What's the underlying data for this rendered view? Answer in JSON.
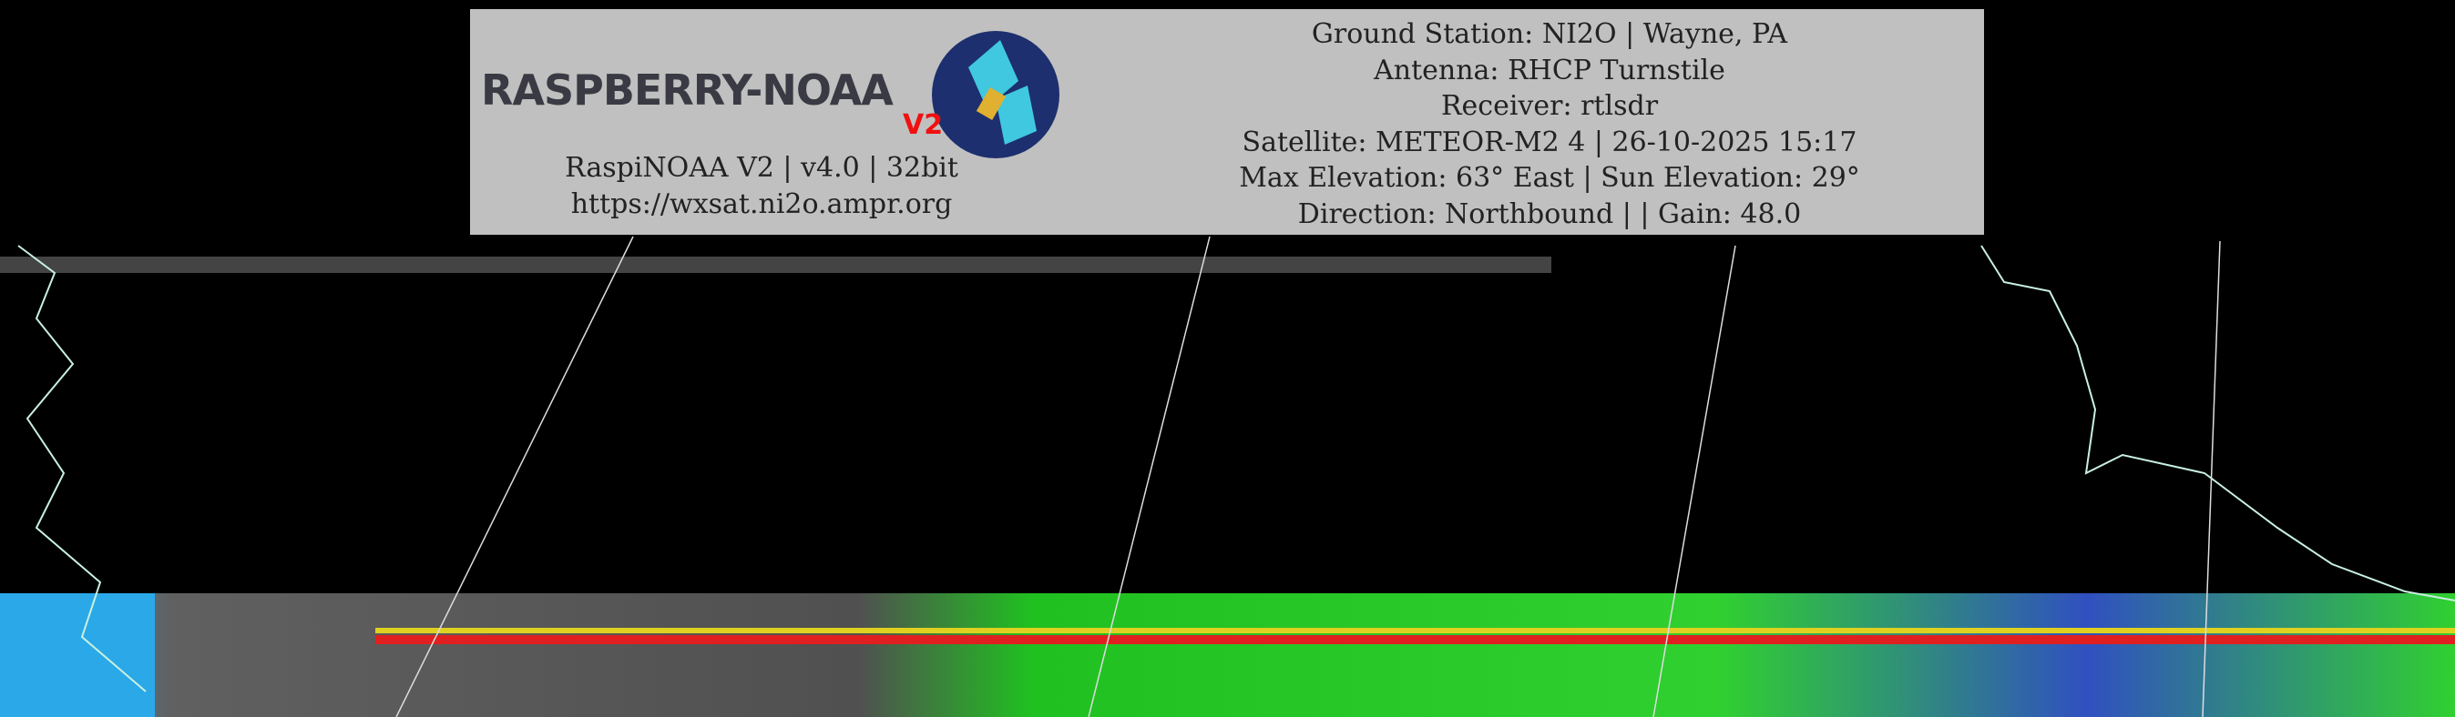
{
  "logo": {
    "text": "RASPBERRY-NOAA",
    "badge": "V2"
  },
  "software": {
    "version_line": "RaspiNOAA V2 | v4.0 | 32bit",
    "url": "https://wxsat.ni2o.ampr.org"
  },
  "pass_info": [
    "Ground Station: NI2O | Wayne, PA",
    "Antenna: RHCP Turnstile",
    "Receiver: rtlsdr",
    "Satellite: METEOR-M2 4 | 26-10-2025 15:17",
    "Max Elevation: 63° East | Sun Elevation: 29°",
    "Direction: Northbound | | Gain: 48.0"
  ],
  "colors": {
    "header_bg": "#c0c0c0",
    "background": "#000000",
    "coastline": "#c8f0e0"
  }
}
